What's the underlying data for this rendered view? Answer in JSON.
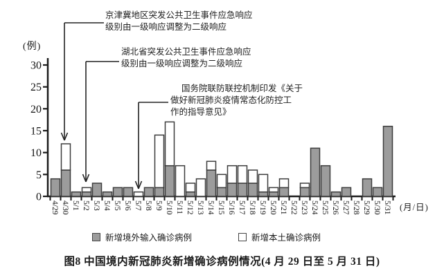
{
  "figure": {
    "y_axis_unit": "(例)",
    "x_axis_unit": "(月/日)",
    "caption": "图8  中国境内新冠肺炎新增确诊病例情况(4 月 29 日至 5 月 31 日)"
  },
  "chart_data": {
    "type": "bar",
    "stacked": true,
    "title": "图8 中国境内新冠肺炎新增确诊病例情况(4月29日至5月31日)",
    "ylabel": "(例)",
    "xlabel": "(月/日)",
    "ylim": [
      0,
      30
    ],
    "yticks": [
      0,
      5,
      10,
      15,
      20,
      25,
      30
    ],
    "grid": false,
    "legend_position": "bottom",
    "categories": [
      "4/29",
      "4/30",
      "5/1",
      "5/2",
      "5/3",
      "5/4",
      "5/5",
      "5/6",
      "5/7",
      "5/8",
      "5/9",
      "5/10",
      "5/11",
      "5/12",
      "5/13",
      "5/14",
      "5/15",
      "5/16",
      "5/17",
      "5/18",
      "5/19",
      "5/20",
      "5/21",
      "5/22",
      "5/23",
      "5/24",
      "5/25",
      "5/26",
      "5/27",
      "5/28",
      "5/29",
      "5/30",
      "5/31"
    ],
    "series": [
      {
        "name": "新增境外输入确诊病例",
        "color": "#9c9c9c",
        "values": [
          4,
          6,
          1,
          1,
          3,
          1,
          2,
          2,
          0,
          2,
          2,
          7,
          0,
          1,
          0,
          6,
          2,
          3,
          3,
          3,
          1,
          1,
          2,
          0,
          2,
          11,
          7,
          1,
          2,
          0,
          4,
          2,
          16
        ]
      },
      {
        "name": "新增本土确诊病例",
        "color": "#ffffff",
        "values": [
          0,
          6,
          0,
          1,
          0,
          0,
          0,
          0,
          1,
          0,
          12,
          10,
          7,
          2,
          4,
          2,
          3,
          4,
          4,
          3,
          4,
          1,
          2,
          0,
          1,
          0,
          0,
          0,
          0,
          0,
          0,
          0,
          0
        ]
      }
    ],
    "annotations": [
      {
        "target": "4/30",
        "lines": [
          "京津冀地区突发公共卫生事件应急响应",
          "级别由一级响应调整为二级响应"
        ]
      },
      {
        "target": "5/2",
        "lines": [
          "湖北省突发公共卫生事件应急响应",
          "级别由一级响应调整为二级响应"
        ]
      },
      {
        "target": "5/7",
        "lines": [
          "国务院联防联控机制印发《关于",
          "做好新冠肺炎疫情常态化防控工",
          "作的指导意见》"
        ]
      }
    ]
  }
}
